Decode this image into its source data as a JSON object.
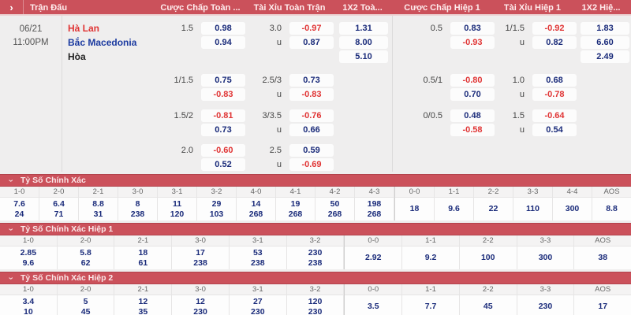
{
  "colors": {
    "accent_red": "#cb515b",
    "odds_positive": "#1a2b7a",
    "odds_negative": "#e03434",
    "team_home": "#e03434",
    "team_away": "#1b3aa0",
    "team_draw": "#222222"
  },
  "icons": {
    "expand_arrow": "›",
    "collapse_chevron": "›"
  },
  "header": {
    "columns": [
      "Trận Đấu",
      "Cược Chấp Toàn ...",
      "Tài Xỉu Toàn Trận",
      "1X2 Toà...",
      "Cược Chấp Hiệp 1",
      "Tài Xỉu Hiệp 1",
      "1X2 Hiệ..."
    ]
  },
  "match": {
    "date": "06/21",
    "time": "11:00PM",
    "teams": [
      "Hà Lan",
      "Bắc Macedonia",
      "Hòa"
    ],
    "blocks": [
      {
        "hc_line": "1.5",
        "hc": [
          "0.98",
          "0.94"
        ],
        "ou_lines": [
          "3.0",
          "u"
        ],
        "ou": [
          "-0.97",
          "0.87"
        ],
        "x2": [
          "1.31",
          "8.00",
          "5.10"
        ],
        "h1hc_line": "0.5",
        "h1hc": [
          "0.83",
          "-0.93"
        ],
        "h1ou_lines": [
          "1/1.5",
          "u"
        ],
        "h1ou": [
          "-0.92",
          "0.82"
        ],
        "h1x2": [
          "1.83",
          "6.60",
          "2.49"
        ]
      },
      {
        "hc_line": "1/1.5",
        "hc": [
          "0.75",
          "-0.83"
        ],
        "ou_lines": [
          "2.5/3",
          "u"
        ],
        "ou": [
          "0.73",
          "-0.83"
        ],
        "x2": [],
        "h1hc_line": "0.5/1",
        "h1hc": [
          "-0.80",
          "0.70"
        ],
        "h1ou_lines": [
          "1.0",
          "u"
        ],
        "h1ou": [
          "0.68",
          "-0.78"
        ],
        "h1x2": []
      },
      {
        "hc_line": "1.5/2",
        "hc": [
          "-0.81",
          "0.73"
        ],
        "ou_lines": [
          "3/3.5",
          "u"
        ],
        "ou": [
          "-0.76",
          "0.66"
        ],
        "x2": [],
        "h1hc_line": "0/0.5",
        "h1hc": [
          "0.48",
          "-0.58"
        ],
        "h1ou_lines": [
          "1.5",
          "u"
        ],
        "h1ou": [
          "-0.64",
          "0.54"
        ],
        "h1x2": []
      },
      {
        "hc_line": "2.0",
        "hc": [
          "-0.60",
          "0.52"
        ],
        "ou_lines": [
          "2.5",
          "u"
        ],
        "ou": [
          "0.59",
          "-0.69"
        ],
        "x2": [],
        "h1hc_line": "",
        "h1hc": [],
        "h1ou_lines": [],
        "h1ou": [],
        "h1x2": []
      }
    ]
  },
  "score_sections": [
    {
      "title": "Tỷ Số Chính Xác",
      "columns": [
        {
          "score": "1-0",
          "odds": [
            "7.6",
            "24"
          ]
        },
        {
          "score": "2-0",
          "odds": [
            "6.4",
            "71"
          ]
        },
        {
          "score": "2-1",
          "odds": [
            "8.8",
            "31"
          ]
        },
        {
          "score": "3-0",
          "odds": [
            "8",
            "238"
          ]
        },
        {
          "score": "3-1",
          "odds": [
            "11",
            "120"
          ]
        },
        {
          "score": "3-2",
          "odds": [
            "29",
            "103"
          ]
        },
        {
          "score": "4-0",
          "odds": [
            "14",
            "268"
          ]
        },
        {
          "score": "4-1",
          "odds": [
            "19",
            "268"
          ]
        },
        {
          "score": "4-2",
          "odds": [
            "50",
            "268"
          ]
        },
        {
          "score": "4-3",
          "odds": [
            "198",
            "268"
          ]
        },
        {
          "score": "0-0",
          "odds": [
            "18"
          ]
        },
        {
          "score": "1-1",
          "odds": [
            "9.6"
          ]
        },
        {
          "score": "2-2",
          "odds": [
            "22"
          ]
        },
        {
          "score": "3-3",
          "odds": [
            "110"
          ]
        },
        {
          "score": "4-4",
          "odds": [
            "300"
          ]
        },
        {
          "score": "AOS",
          "odds": [
            "8.8"
          ]
        }
      ]
    },
    {
      "title": "Tỷ Số Chính Xác Hiệp 1",
      "columns": [
        {
          "score": "1-0",
          "odds": [
            "2.85",
            "9.6"
          ]
        },
        {
          "score": "2-0",
          "odds": [
            "5.8",
            "62"
          ]
        },
        {
          "score": "2-1",
          "odds": [
            "18",
            "61"
          ]
        },
        {
          "score": "3-0",
          "odds": [
            "17",
            "238"
          ]
        },
        {
          "score": "3-1",
          "odds": [
            "53",
            "238"
          ]
        },
        {
          "score": "3-2",
          "odds": [
            "230",
            "238"
          ]
        },
        {
          "score": "0-0",
          "odds": [
            "2.92"
          ]
        },
        {
          "score": "1-1",
          "odds": [
            "9.2"
          ]
        },
        {
          "score": "2-2",
          "odds": [
            "100"
          ]
        },
        {
          "score": "3-3",
          "odds": [
            "300"
          ]
        },
        {
          "score": "AOS",
          "odds": [
            "38"
          ]
        }
      ]
    },
    {
      "title": "Tỷ Số Chính Xác Hiệp 2",
      "columns": [
        {
          "score": "1-0",
          "odds": [
            "3.4",
            "10"
          ]
        },
        {
          "score": "2-0",
          "odds": [
            "5",
            "45"
          ]
        },
        {
          "score": "2-1",
          "odds": [
            "12",
            "35"
          ]
        },
        {
          "score": "3-0",
          "odds": [
            "12",
            "230"
          ]
        },
        {
          "score": "3-1",
          "odds": [
            "27",
            "230"
          ]
        },
        {
          "score": "3-2",
          "odds": [
            "120",
            "230"
          ]
        },
        {
          "score": "0-0",
          "odds": [
            "3.5"
          ]
        },
        {
          "score": "1-1",
          "odds": [
            "7.7"
          ]
        },
        {
          "score": "2-2",
          "odds": [
            "45"
          ]
        },
        {
          "score": "3-3",
          "odds": [
            "230"
          ]
        },
        {
          "score": "AOS",
          "odds": [
            "17"
          ]
        }
      ]
    }
  ]
}
